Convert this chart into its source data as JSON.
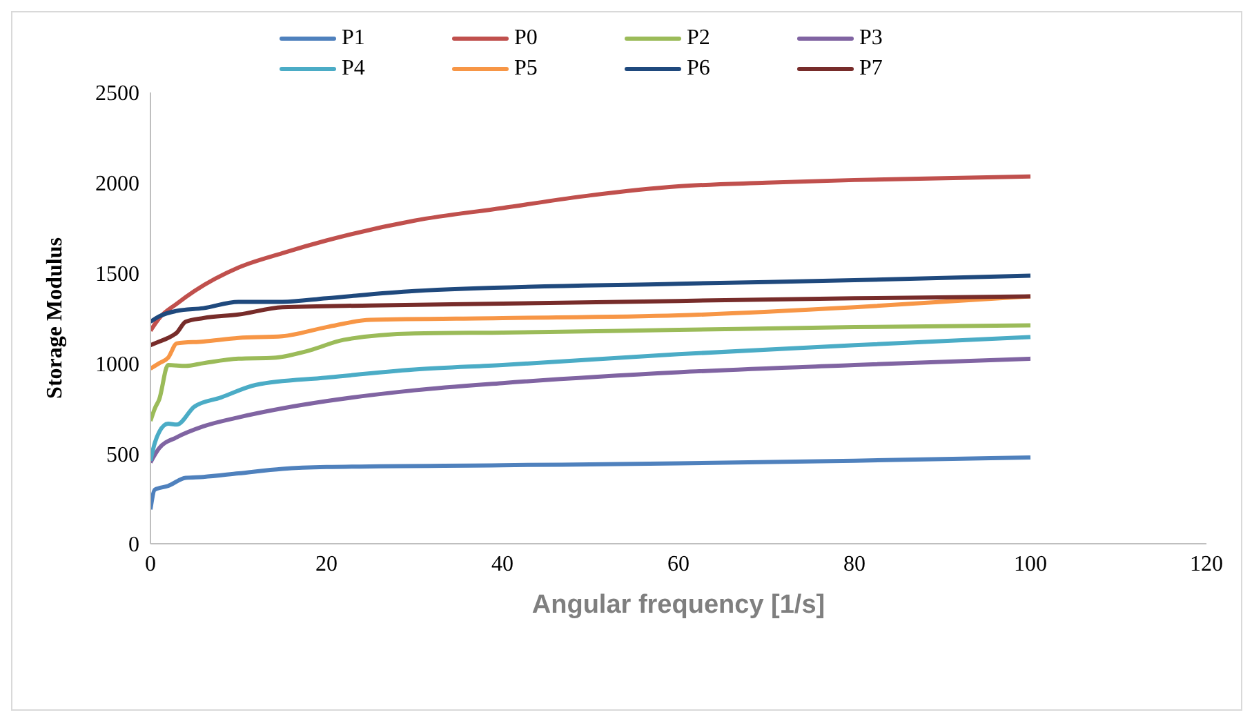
{
  "chart_data": {
    "type": "line",
    "xlabel": "Angular frequency [1/s]",
    "ylabel": "Storage Modulus",
    "xlim": [
      0,
      120
    ],
    "xticks": [
      0,
      20,
      40,
      60,
      80,
      100,
      120
    ],
    "ylim": [
      0,
      2500
    ],
    "yticks": [
      0,
      500,
      1000,
      1500,
      2000,
      2500
    ],
    "grid": false,
    "legend": "top",
    "marker": "none",
    "line_style": "solid",
    "series": [
      {
        "name": "P1",
        "color": "#4f81bd",
        "x": [
          0,
          0.5,
          2,
          4,
          6,
          10,
          15,
          20,
          40,
          60,
          80,
          100
        ],
        "values": [
          190,
          300,
          320,
          365,
          370,
          390,
          415,
          425,
          435,
          445,
          460,
          478
        ]
      },
      {
        "name": "P0",
        "color": "#c0504d",
        "x": [
          0,
          1,
          3,
          5,
          10,
          15,
          20,
          30,
          40,
          50,
          60,
          70,
          80,
          100
        ],
        "values": [
          1180,
          1250,
          1330,
          1400,
          1530,
          1610,
          1680,
          1790,
          1860,
          1930,
          1980,
          2000,
          2015,
          2035
        ]
      },
      {
        "name": "P2",
        "color": "#9bbb59",
        "x": [
          0,
          0.5,
          1,
          2,
          4,
          6,
          10,
          14,
          18,
          22,
          30,
          40,
          60,
          80,
          100
        ],
        "values": [
          680,
          750,
          800,
          990,
          985,
          1000,
          1025,
          1030,
          1070,
          1130,
          1165,
          1170,
          1185,
          1200,
          1210
        ]
      },
      {
        "name": "P3",
        "color": "#8064a2",
        "x": [
          0,
          1,
          3,
          6,
          10,
          15,
          20,
          30,
          40,
          60,
          80,
          100
        ],
        "values": [
          450,
          530,
          590,
          650,
          700,
          750,
          790,
          850,
          890,
          950,
          990,
          1025
        ]
      },
      {
        "name": "P4",
        "color": "#4bacc6",
        "x": [
          0,
          0.5,
          1,
          2,
          3,
          5,
          8,
          12,
          20,
          30,
          40,
          60,
          80,
          100
        ],
        "values": [
          460,
          560,
          620,
          665,
          660,
          760,
          810,
          880,
          920,
          965,
          990,
          1050,
          1100,
          1145
        ]
      },
      {
        "name": "P5",
        "color": "#f79646",
        "x": [
          0,
          1,
          2,
          3,
          6,
          10,
          15,
          20,
          25,
          40,
          60,
          80,
          100
        ],
        "values": [
          970,
          1000,
          1030,
          1110,
          1120,
          1140,
          1150,
          1200,
          1240,
          1250,
          1265,
          1310,
          1370
        ]
      },
      {
        "name": "P6",
        "color": "#1f497d",
        "x": [
          0,
          1,
          3,
          6,
          10,
          15,
          20,
          30,
          60,
          80,
          100
        ],
        "values": [
          1230,
          1260,
          1290,
          1305,
          1340,
          1340,
          1360,
          1400,
          1440,
          1460,
          1485
        ]
      },
      {
        "name": "P7",
        "color": "#772c2a",
        "x": [
          0,
          1,
          2,
          3,
          4,
          6,
          10,
          15,
          25,
          40,
          60,
          80,
          100
        ],
        "values": [
          1100,
          1120,
          1140,
          1170,
          1230,
          1250,
          1270,
          1310,
          1320,
          1330,
          1345,
          1360,
          1370
        ]
      }
    ]
  }
}
